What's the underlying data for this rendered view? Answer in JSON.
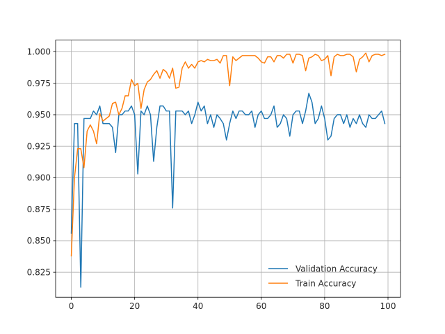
{
  "chart_data": {
    "type": "line",
    "title": "",
    "xlabel": "",
    "ylabel": "",
    "xlim": [
      -4.95,
      103.95
    ],
    "ylim": [
      0.8051,
      1.0093
    ],
    "xticks": [
      0,
      20,
      40,
      60,
      80,
      100
    ],
    "xtick_labels": [
      "0",
      "20",
      "40",
      "60",
      "80",
      "100"
    ],
    "yticks": [
      0.825,
      0.85,
      0.875,
      0.9,
      0.925,
      0.95,
      0.975,
      1.0
    ],
    "ytick_labels": [
      "0.825",
      "0.850",
      "0.875",
      "0.900",
      "0.925",
      "0.950",
      "0.975",
      "1.000"
    ],
    "grid": true,
    "legend_position": "lower-right",
    "colors": {
      "validation": "#1f77b4",
      "train": "#ff7f0e",
      "grid": "#b0b0b0",
      "axes": "#000000"
    },
    "series": [
      {
        "name": "Validation Accuracy",
        "color": "#1f77b4",
        "values": [
          0.856,
          0.943,
          0.943,
          0.813,
          0.947,
          0.947,
          0.947,
          0.953,
          0.95,
          0.957,
          0.943,
          0.943,
          0.943,
          0.94,
          0.92,
          0.95,
          0.95,
          0.953,
          0.953,
          0.957,
          0.95,
          0.903,
          0.953,
          0.95,
          0.957,
          0.95,
          0.913,
          0.94,
          0.957,
          0.957,
          0.953,
          0.953,
          0.876,
          0.953,
          0.953,
          0.953,
          0.95,
          0.953,
          0.943,
          0.95,
          0.96,
          0.953,
          0.957,
          0.943,
          0.95,
          0.94,
          0.95,
          0.947,
          0.943,
          0.93,
          0.943,
          0.953,
          0.947,
          0.953,
          0.953,
          0.95,
          0.95,
          0.953,
          0.94,
          0.95,
          0.953,
          0.947,
          0.947,
          0.95,
          0.957,
          0.94,
          0.943,
          0.95,
          0.947,
          0.933,
          0.95,
          0.953,
          0.953,
          0.943,
          0.953,
          0.967,
          0.96,
          0.943,
          0.947,
          0.957,
          0.947,
          0.93,
          0.933,
          0.947,
          0.95,
          0.95,
          0.943,
          0.95,
          0.94,
          0.947,
          0.943,
          0.95,
          0.943,
          0.94,
          0.95,
          0.947,
          0.947,
          0.95,
          0.953,
          0.943
        ]
      },
      {
        "name": "Train Accuracy",
        "color": "#ff7f0e",
        "values": [
          0.838,
          0.9,
          0.923,
          0.923,
          0.908,
          0.937,
          0.942,
          0.937,
          0.927,
          0.951,
          0.945,
          0.947,
          0.949,
          0.959,
          0.96,
          0.95,
          0.955,
          0.965,
          0.965,
          0.978,
          0.973,
          0.975,
          0.955,
          0.97,
          0.976,
          0.978,
          0.982,
          0.985,
          0.979,
          0.986,
          0.984,
          0.979,
          0.987,
          0.971,
          0.972,
          0.987,
          0.992,
          0.987,
          0.99,
          0.987,
          0.992,
          0.993,
          0.992,
          0.994,
          0.993,
          0.993,
          0.994,
          0.991,
          0.997,
          0.997,
          0.973,
          0.996,
          0.993,
          0.995,
          0.997,
          0.997,
          0.997,
          0.997,
          0.997,
          0.995,
          0.992,
          0.991,
          0.996,
          0.996,
          0.992,
          0.997,
          0.997,
          0.995,
          0.998,
          0.998,
          0.991,
          0.998,
          0.998,
          0.997,
          0.985,
          0.995,
          0.996,
          0.998,
          0.997,
          0.993,
          0.994,
          0.997,
          0.981,
          0.996,
          0.998,
          0.997,
          0.997,
          0.998,
          0.998,
          0.996,
          0.984,
          0.994,
          0.996,
          0.999,
          0.992,
          0.997,
          0.998,
          0.998,
          0.997,
          0.998
        ]
      }
    ]
  }
}
